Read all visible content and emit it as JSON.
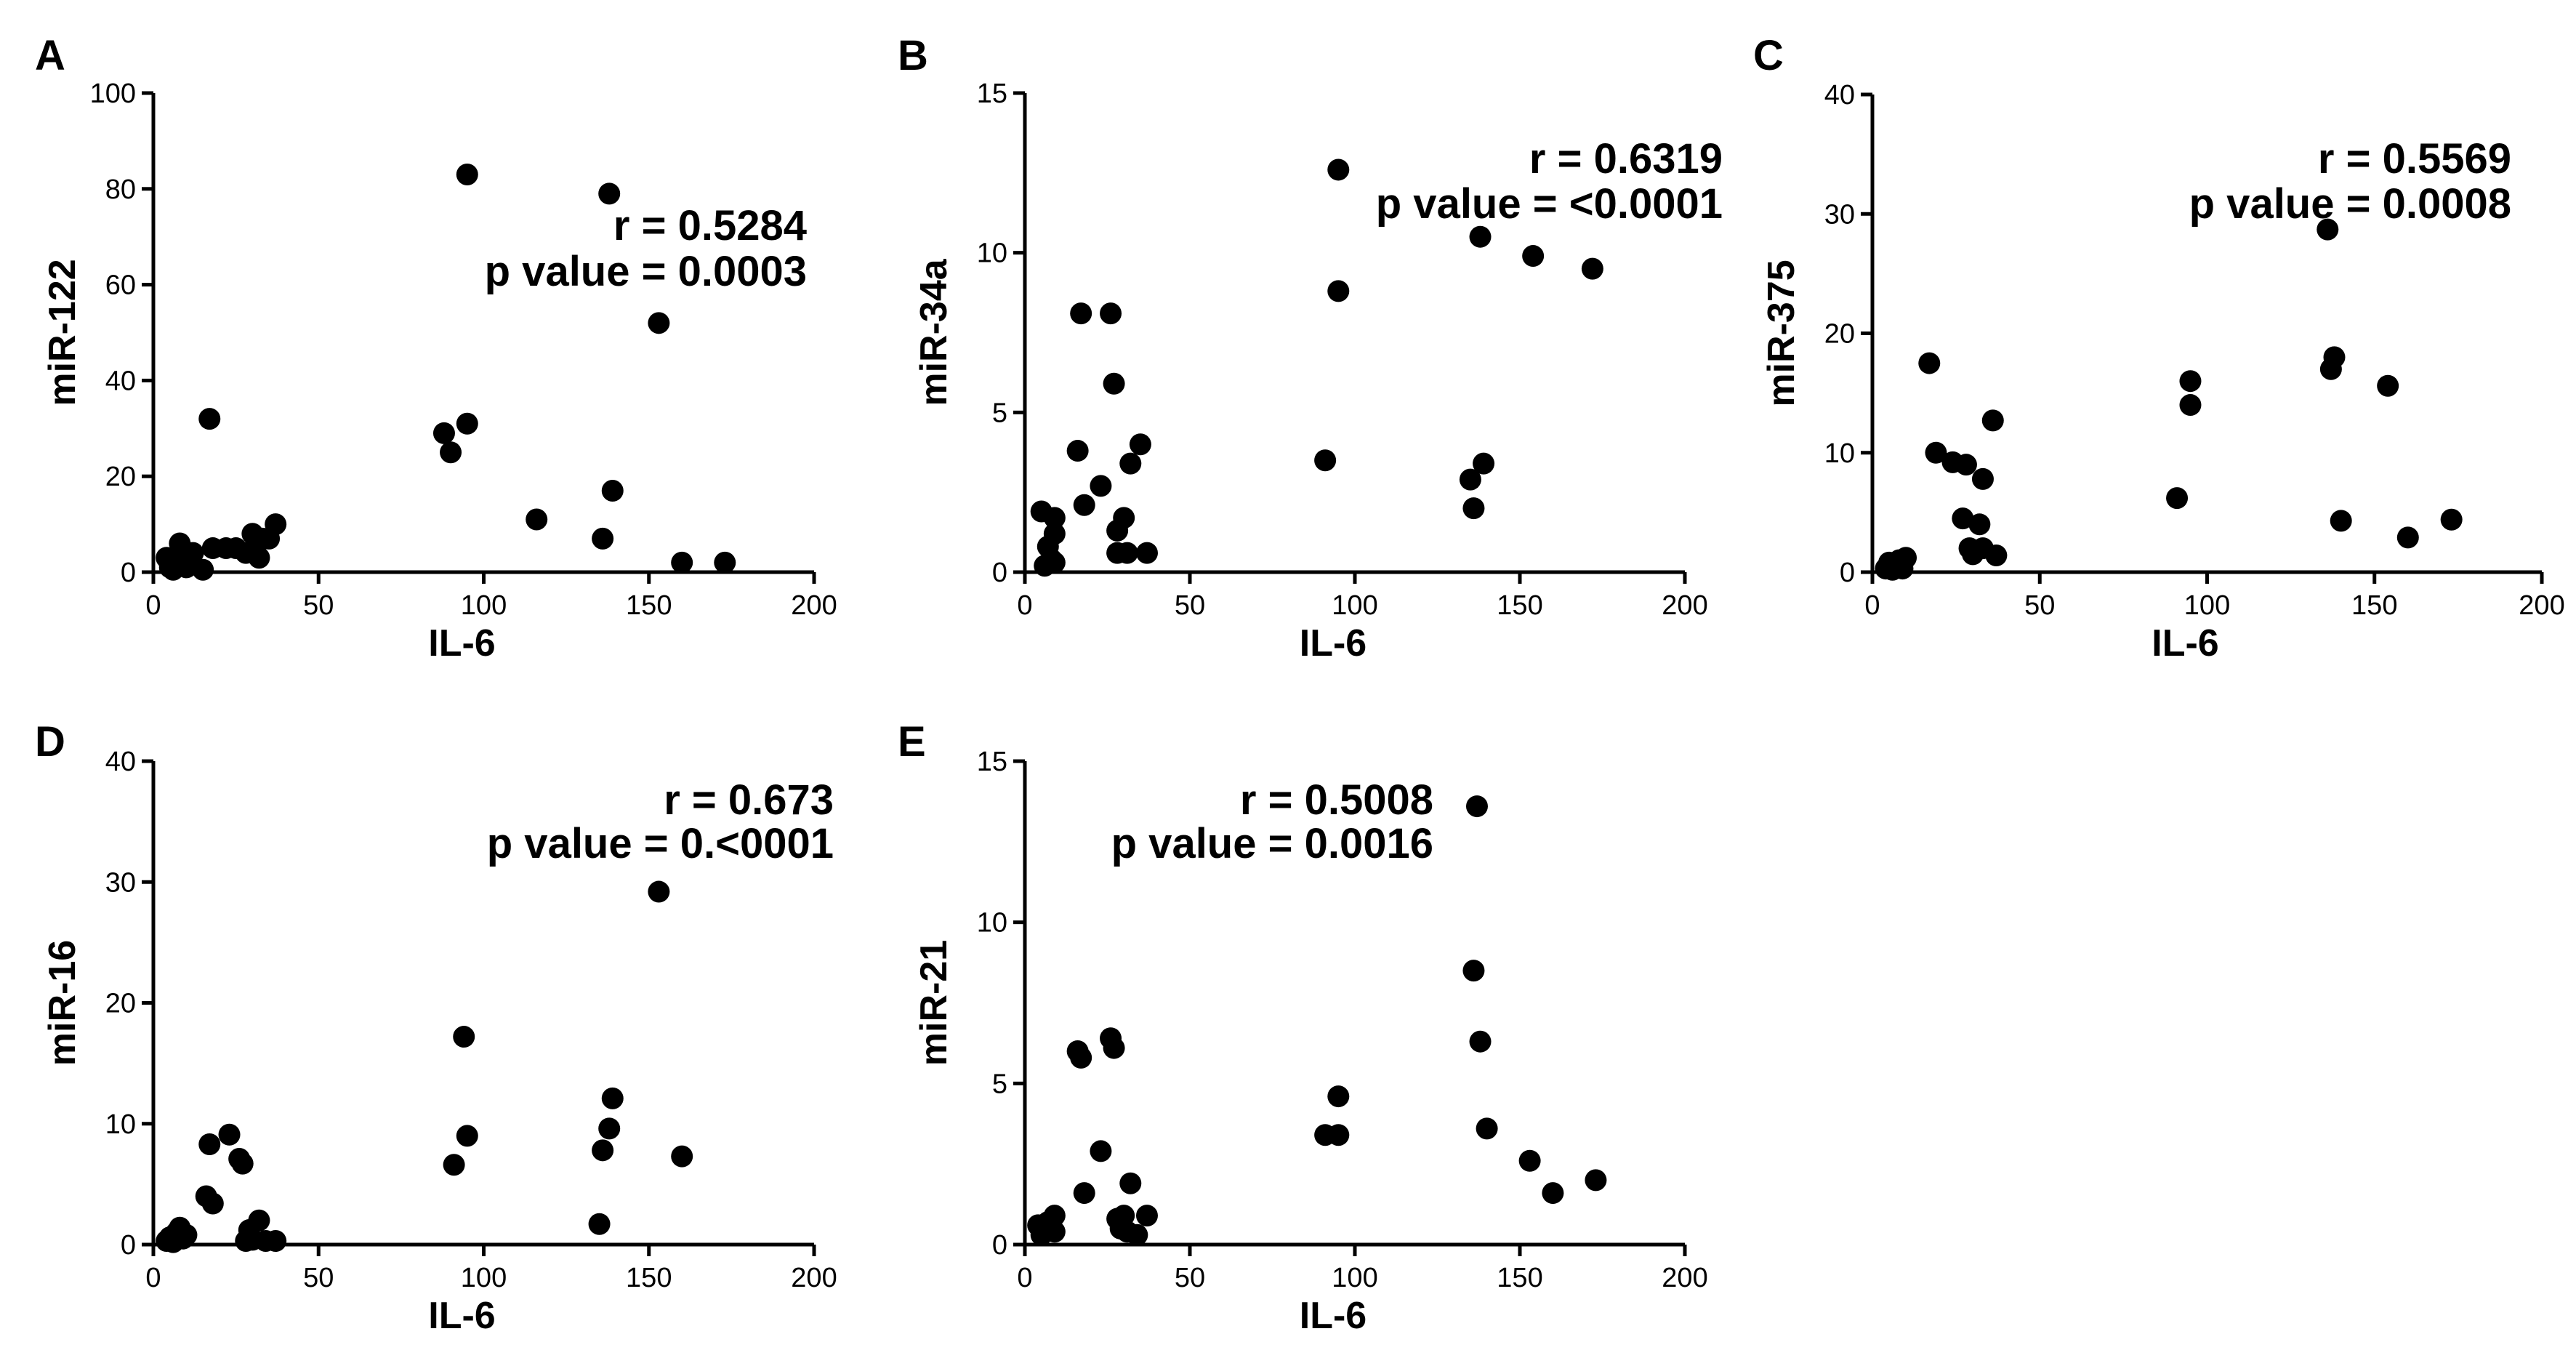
{
  "chart_data": [
    {
      "panel": "A",
      "type": "scatter",
      "xlabel": "IL-6",
      "ylabel": "miR-122",
      "xlim": [
        0,
        200
      ],
      "ylim": [
        0,
        100
      ],
      "xticks": [
        "0",
        "50",
        "100",
        "150",
        "200"
      ],
      "yticks": [
        "0",
        "20",
        "40",
        "60",
        "80",
        "100"
      ],
      "r_text": "r = 0.5284",
      "p_text": "p value = 0.0003",
      "points": [
        [
          4,
          3
        ],
        [
          5,
          1
        ],
        [
          6,
          0.5
        ],
        [
          7,
          2
        ],
        [
          8,
          6
        ],
        [
          9,
          3
        ],
        [
          10,
          1
        ],
        [
          12,
          4
        ],
        [
          15,
          0.5
        ],
        [
          17,
          32
        ],
        [
          18,
          5
        ],
        [
          22,
          5
        ],
        [
          25,
          5
        ],
        [
          28,
          4
        ],
        [
          30,
          8
        ],
        [
          31,
          4
        ],
        [
          32,
          3
        ],
        [
          33,
          7
        ],
        [
          35,
          7
        ],
        [
          37,
          10
        ],
        [
          88,
          29
        ],
        [
          90,
          25
        ],
        [
          95,
          31
        ],
        [
          95,
          83
        ],
        [
          116,
          11
        ],
        [
          136,
          7
        ],
        [
          138,
          79
        ],
        [
          139,
          17
        ],
        [
          153,
          52
        ],
        [
          160,
          2
        ],
        [
          173,
          2
        ]
      ]
    },
    {
      "panel": "B",
      "type": "scatter",
      "xlabel": "IL-6",
      "ylabel": "miR-34a",
      "xlim": [
        0,
        200
      ],
      "ylim": [
        0,
        15
      ],
      "xticks": [
        "0",
        "50",
        "100",
        "150",
        "200"
      ],
      "yticks": [
        "0",
        "5",
        "10",
        "15"
      ],
      "r_text": "r = 0.6319",
      "p_text": "p value = <0.0001",
      "points": [
        [
          5,
          1.9
        ],
        [
          6,
          0.2
        ],
        [
          7,
          0.8
        ],
        [
          8,
          0.4
        ],
        [
          9,
          1.2
        ],
        [
          9,
          1.7
        ],
        [
          9,
          0.3
        ],
        [
          16,
          3.8
        ],
        [
          17,
          8.1
        ],
        [
          18,
          2.1
        ],
        [
          23,
          2.7
        ],
        [
          26,
          8.1
        ],
        [
          27,
          5.9
        ],
        [
          28,
          1.3
        ],
        [
          28,
          0.6
        ],
        [
          30,
          1.7
        ],
        [
          31,
          0.6
        ],
        [
          32,
          3.4
        ],
        [
          35,
          4.0
        ],
        [
          37,
          0.6
        ],
        [
          91,
          3.5
        ],
        [
          95,
          12.6
        ],
        [
          95,
          8.8
        ],
        [
          135,
          2.9
        ],
        [
          136,
          2.0
        ],
        [
          138,
          10.5
        ],
        [
          139,
          3.4
        ],
        [
          154,
          9.9
        ],
        [
          172,
          9.5
        ]
      ]
    },
    {
      "panel": "C",
      "type": "scatter",
      "xlabel": "IL-6",
      "ylabel": "miR-375",
      "xlim": [
        0,
        200
      ],
      "ylim": [
        0,
        40
      ],
      "xticks": [
        "0",
        "50",
        "100",
        "150",
        "200"
      ],
      "yticks": [
        "0",
        "10",
        "20",
        "30",
        "40"
      ],
      "r_text": "r = 0.5569",
      "p_text": "p value = 0.0008",
      "points": [
        [
          4,
          0.3
        ],
        [
          5,
          0.8
        ],
        [
          6,
          0.2
        ],
        [
          7,
          0.5
        ],
        [
          8,
          1.0
        ],
        [
          9,
          0.3
        ],
        [
          10,
          1.2
        ],
        [
          17,
          17.5
        ],
        [
          19,
          10
        ],
        [
          24,
          9.2
        ],
        [
          28,
          9
        ],
        [
          27,
          4.5
        ],
        [
          29,
          2
        ],
        [
          30,
          1.5
        ],
        [
          32,
          4
        ],
        [
          33,
          7.8
        ],
        [
          33,
          2
        ],
        [
          36,
          12.7
        ],
        [
          37,
          1.4
        ],
        [
          91,
          6.2
        ],
        [
          95,
          14
        ],
        [
          95,
          16
        ],
        [
          136,
          28.7
        ],
        [
          137,
          17
        ],
        [
          138,
          18
        ],
        [
          140,
          4.3
        ],
        [
          154,
          15.6
        ],
        [
          160,
          2.9
        ],
        [
          173,
          4.4
        ]
      ]
    },
    {
      "panel": "D",
      "type": "scatter",
      "xlabel": "IL-6",
      "ylabel": "miR-16",
      "xlim": [
        0,
        200
      ],
      "ylim": [
        0,
        40
      ],
      "xticks": [
        "0",
        "50",
        "100",
        "150",
        "200"
      ],
      "yticks": [
        "0",
        "10",
        "20",
        "30",
        "40"
      ],
      "r_text": "r = 0.673",
      "p_text": "p value = 0.<0001",
      "points": [
        [
          4,
          0.3
        ],
        [
          5,
          0.6
        ],
        [
          6,
          0.2
        ],
        [
          7,
          1.0
        ],
        [
          8,
          1.4
        ],
        [
          9,
          0.5
        ],
        [
          10,
          0.8
        ],
        [
          16,
          4
        ],
        [
          17,
          8.3
        ],
        [
          18,
          3.4
        ],
        [
          23,
          9.1
        ],
        [
          26,
          7.1
        ],
        [
          27,
          6.7
        ],
        [
          28,
          0.3
        ],
        [
          29,
          1.2
        ],
        [
          30,
          0.4
        ],
        [
          32,
          2
        ],
        [
          34,
          0.3
        ],
        [
          37,
          0.3
        ],
        [
          91,
          6.6
        ],
        [
          94,
          17.2
        ],
        [
          95,
          9
        ],
        [
          135,
          1.7
        ],
        [
          136,
          7.8
        ],
        [
          138,
          9.6
        ],
        [
          139,
          12.1
        ],
        [
          153,
          29.2
        ],
        [
          160,
          7.3
        ]
      ]
    },
    {
      "panel": "E",
      "type": "scatter",
      "xlabel": "IL-6",
      "ylabel": "miR-21",
      "xlim": [
        0,
        200
      ],
      "ylim": [
        0,
        15
      ],
      "xticks": [
        "0",
        "50",
        "100",
        "150",
        "200"
      ],
      "yticks": [
        "0",
        "5",
        "10",
        "15"
      ],
      "r_text": "r = 0.5008",
      "p_text": "p value = 0.0016",
      "points": [
        [
          4,
          0.6
        ],
        [
          5,
          0.3
        ],
        [
          6,
          0.4
        ],
        [
          7,
          0.7
        ],
        [
          8,
          0.6
        ],
        [
          9,
          0.9
        ],
        [
          9,
          0.4
        ],
        [
          16,
          6.0
        ],
        [
          17,
          5.8
        ],
        [
          18,
          1.6
        ],
        [
          23,
          2.9
        ],
        [
          26,
          6.4
        ],
        [
          27,
          6.1
        ],
        [
          28,
          0.8
        ],
        [
          29,
          0.5
        ],
        [
          30,
          0.9
        ],
        [
          31,
          0.4
        ],
        [
          32,
          1.9
        ],
        [
          34,
          0.3
        ],
        [
          37,
          0.9
        ],
        [
          91,
          3.4
        ],
        [
          95,
          4.6
        ],
        [
          95,
          3.4
        ],
        [
          136,
          8.5
        ],
        [
          137,
          13.6
        ],
        [
          138,
          6.3
        ],
        [
          140,
          3.6
        ],
        [
          153,
          2.6
        ],
        [
          160,
          1.6
        ],
        [
          173,
          2.0
        ]
      ]
    }
  ]
}
